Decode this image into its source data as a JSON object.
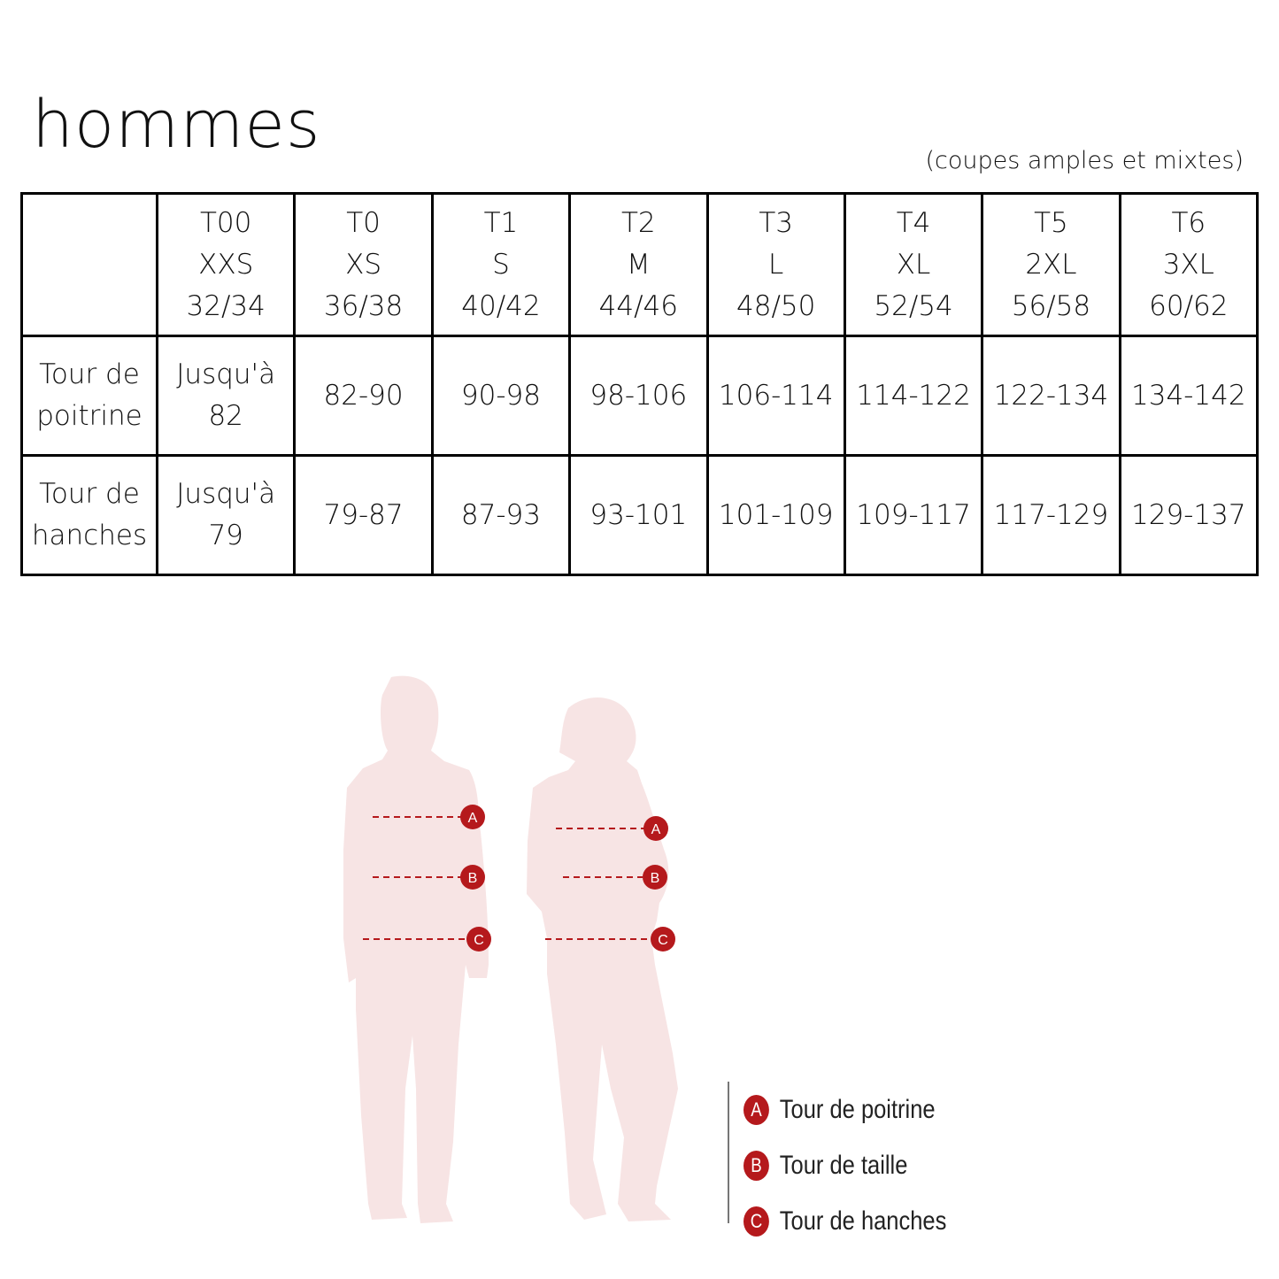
{
  "title": "hommes",
  "subtitle": "(coupes amples et mixtes)",
  "table": {
    "header": [
      [
        "T00",
        "XXS",
        "32/34"
      ],
      [
        "T0",
        "XS",
        "36/38"
      ],
      [
        "T1",
        "S",
        "40/42"
      ],
      [
        "T2",
        "M",
        "44/46"
      ],
      [
        "T3",
        "L",
        "48/50"
      ],
      [
        "T4",
        "XL",
        "52/54"
      ],
      [
        "T5",
        "2XL",
        "56/58"
      ],
      [
        "T6",
        "3XL",
        "60/62"
      ]
    ],
    "rows": [
      {
        "label": [
          "Tour de",
          "poitrine"
        ],
        "first": [
          "Jusqu'à",
          "82"
        ],
        "values": [
          "82-90",
          "90-98",
          "98-106",
          "106-114",
          "114-122",
          "122-134",
          "134-142"
        ]
      },
      {
        "label": [
          "Tour de",
          "hanches"
        ],
        "first": [
          "Jusqu'à",
          "79"
        ],
        "values": [
          "79-87",
          "87-93",
          "93-101",
          "101-109",
          "109-117",
          "117-129",
          "129-137"
        ]
      }
    ]
  },
  "figure": {
    "markers": [
      "A",
      "B",
      "C"
    ],
    "silhouette_color": "#f7e4e4",
    "accent_color": "#b5191c"
  },
  "legend": [
    {
      "marker": "A",
      "label": "Tour de poitrine"
    },
    {
      "marker": "B",
      "label": "Tour de taille"
    },
    {
      "marker": "C",
      "label": "Tour de hanches"
    }
  ]
}
